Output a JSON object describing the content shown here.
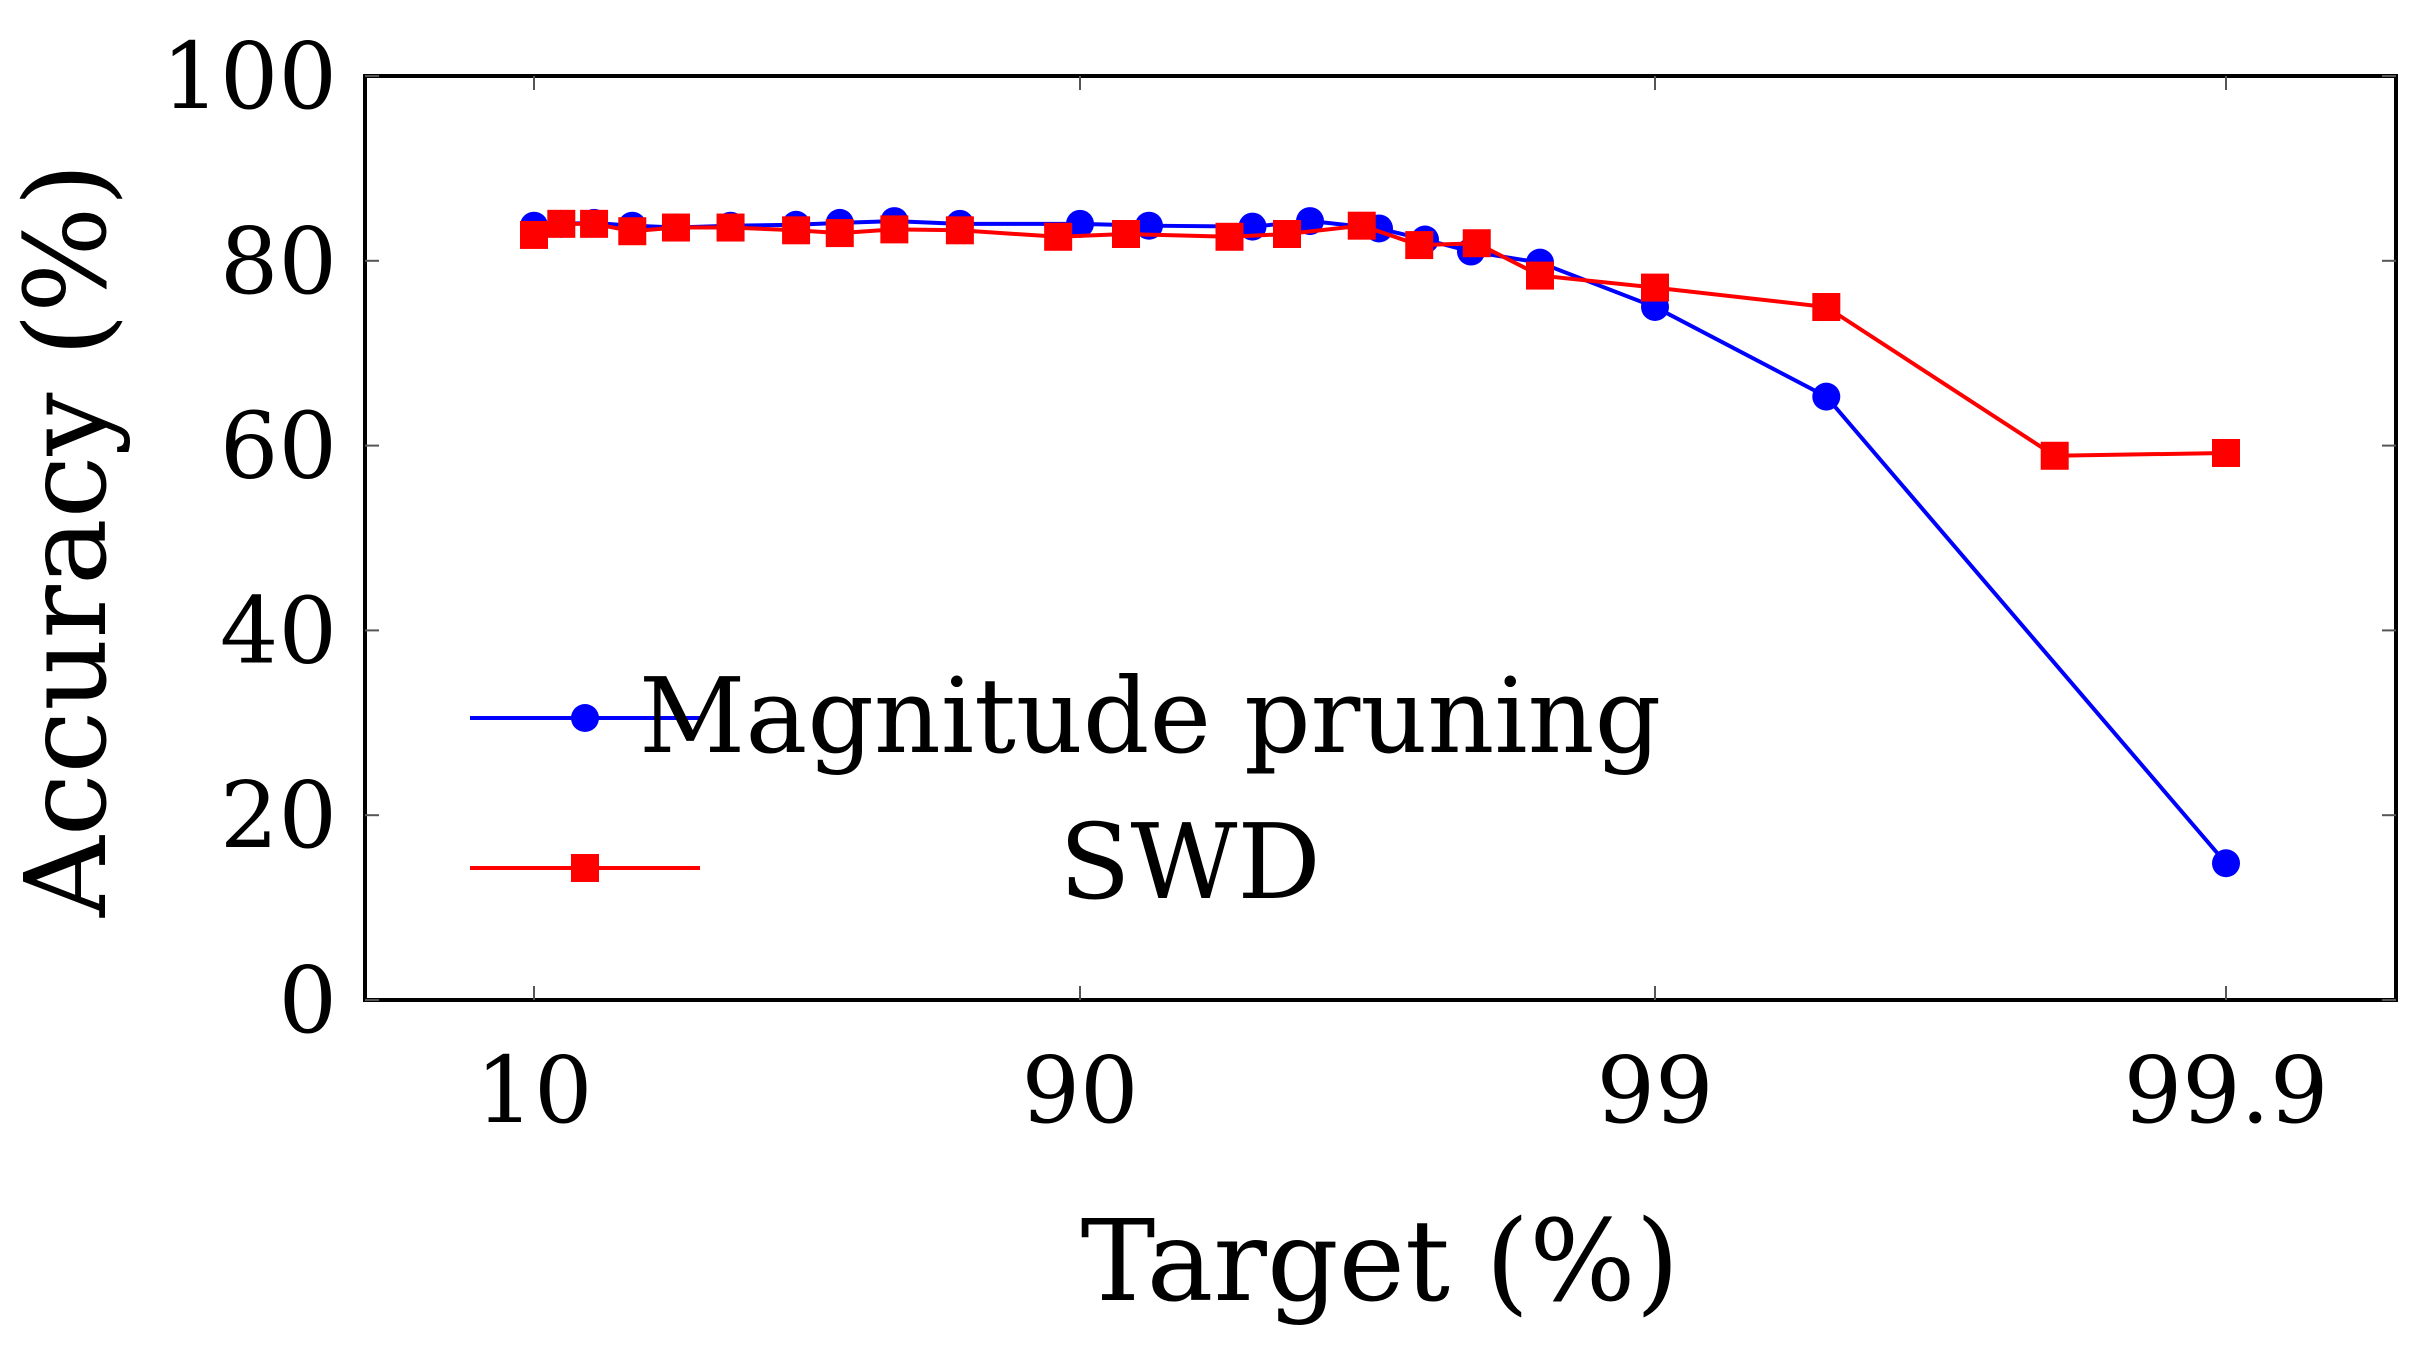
{
  "chart_data": {
    "type": "line",
    "title": "",
    "xlabel": "Target (%)",
    "ylabel": "Accuracy (%)",
    "x_scale": "log-like (categorical ticks 10, 90, 99, 99.9)",
    "x_ticks": [
      "10",
      "90",
      "99",
      "99.9"
    ],
    "y_ticks": [
      "0",
      "20",
      "40",
      "60",
      "80",
      "100"
    ],
    "ylim": [
      0,
      100
    ],
    "grid": false,
    "legend_position": "bottom-left",
    "series": [
      {
        "name": "Magnitude pruning",
        "marker": "circle",
        "color": "#0000ff",
        "x": [
          0.0,
          0.05,
          0.11,
          0.18,
          0.26,
          0.36,
          0.48,
          0.56,
          0.66,
          0.78,
          1.0,
          1.12,
          1.3,
          1.4,
          1.52,
          1.6,
          1.68,
          1.8,
          2.0,
          2.3,
          3.0
        ],
        "values": [
          83.8,
          84.0,
          84.1,
          83.8,
          83.6,
          83.8,
          83.9,
          84.1,
          84.3,
          84.0,
          84.0,
          83.8,
          83.7,
          84.3,
          83.5,
          82.3,
          81.0,
          79.8,
          75.0,
          65.3,
          14.8
        ]
      },
      {
        "name": "SWD",
        "marker": "square",
        "color": "#ff0000",
        "x": [
          0.0,
          0.05,
          0.11,
          0.18,
          0.26,
          0.36,
          0.48,
          0.56,
          0.66,
          0.78,
          0.96,
          1.08,
          1.26,
          1.36,
          1.49,
          1.59,
          1.69,
          1.8,
          2.0,
          2.3,
          2.7,
          3.0
        ],
        "values": [
          82.8,
          84.0,
          84.0,
          83.2,
          83.6,
          83.6,
          83.3,
          83.0,
          83.4,
          83.3,
          82.6,
          82.9,
          82.6,
          82.9,
          83.8,
          81.7,
          81.9,
          78.4,
          77.1,
          75.0,
          58.9,
          59.2
        ]
      }
    ]
  }
}
